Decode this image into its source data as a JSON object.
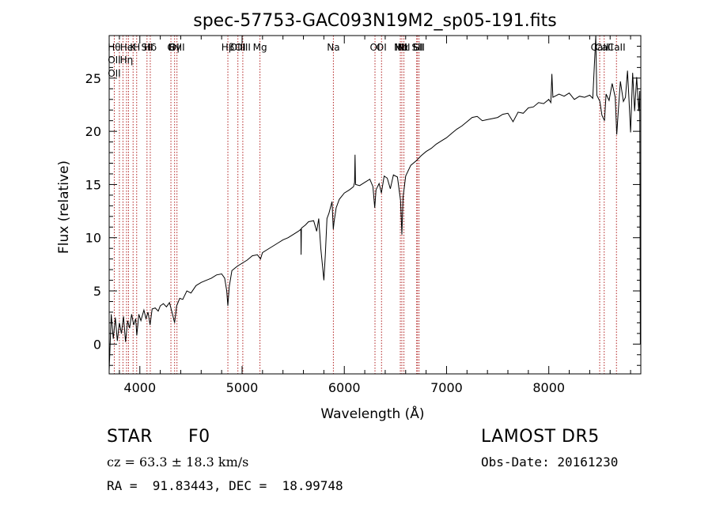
{
  "chart_data": {
    "type": "line",
    "title": "spec-57753-GAC093N19M2_sp05-191.fits",
    "xlabel": "Wavelength (Å)",
    "ylabel": "Flux (relative)",
    "xlim": [
      3700,
      8900
    ],
    "ylim": [
      -2.8,
      29
    ],
    "xticks": [
      4000,
      5000,
      6000,
      7000,
      8000
    ],
    "xtick_labels": [
      "4000",
      "5000",
      "6000",
      "7000",
      "8000"
    ],
    "yticks": [
      0,
      5,
      10,
      15,
      20,
      25
    ],
    "ytick_labels": [
      "0",
      "5",
      "10",
      "15",
      "20",
      "25"
    ],
    "series": [
      {
        "color": "#000000",
        "points": [
          [
            3700,
            -2.5
          ],
          [
            3720,
            2.8
          ],
          [
            3740,
            0.5
          ],
          [
            3760,
            2.5
          ],
          [
            3780,
            0.3
          ],
          [
            3800,
            2.0
          ],
          [
            3820,
            1.0
          ],
          [
            3840,
            2.6
          ],
          [
            3860,
            0.2
          ],
          [
            3880,
            2.2
          ],
          [
            3900,
            1.5
          ],
          [
            3920,
            2.8
          ],
          [
            3940,
            1.8
          ],
          [
            3960,
            2.4
          ],
          [
            3970,
            0.8
          ],
          [
            3990,
            2.8
          ],
          [
            4010,
            2.2
          ],
          [
            4040,
            3.2
          ],
          [
            4060,
            2.4
          ],
          [
            4080,
            3.0
          ],
          [
            4100,
            1.8
          ],
          [
            4120,
            3.3
          ],
          [
            4150,
            3.4
          ],
          [
            4180,
            3.1
          ],
          [
            4200,
            3.6
          ],
          [
            4230,
            3.8
          ],
          [
            4260,
            3.5
          ],
          [
            4290,
            3.9
          ],
          [
            4320,
            2.8
          ],
          [
            4340,
            2.0
          ],
          [
            4360,
            3.6
          ],
          [
            4390,
            4.3
          ],
          [
            4420,
            4.2
          ],
          [
            4460,
            5.0
          ],
          [
            4500,
            4.8
          ],
          [
            4550,
            5.5
          ],
          [
            4600,
            5.8
          ],
          [
            4650,
            6.0
          ],
          [
            4700,
            6.2
          ],
          [
            4750,
            6.5
          ],
          [
            4800,
            6.6
          ],
          [
            4830,
            6.2
          ],
          [
            4850,
            5.0
          ],
          [
            4861,
            3.6
          ],
          [
            4875,
            5.4
          ],
          [
            4900,
            6.9
          ],
          [
            4950,
            7.3
          ],
          [
            5000,
            7.6
          ],
          [
            5050,
            7.9
          ],
          [
            5100,
            8.3
          ],
          [
            5150,
            8.4
          ],
          [
            5180,
            8.0
          ],
          [
            5200,
            8.6
          ],
          [
            5250,
            8.9
          ],
          [
            5300,
            9.2
          ],
          [
            5350,
            9.5
          ],
          [
            5400,
            9.8
          ],
          [
            5450,
            10.0
          ],
          [
            5500,
            10.3
          ],
          [
            5550,
            10.6
          ],
          [
            5575,
            10.8
          ],
          [
            5577,
            8.4
          ],
          [
            5580,
            10.9
          ],
          [
            5620,
            11.2
          ],
          [
            5650,
            11.5
          ],
          [
            5700,
            11.6
          ],
          [
            5730,
            10.6
          ],
          [
            5750,
            11.8
          ],
          [
            5770,
            9.0
          ],
          [
            5790,
            7.0
          ],
          [
            5800,
            6.0
          ],
          [
            5815,
            8.5
          ],
          [
            5830,
            11.8
          ],
          [
            5850,
            12.3
          ],
          [
            5880,
            13.4
          ],
          [
            5892,
            10.8
          ],
          [
            5900,
            11.5
          ],
          [
            5920,
            12.8
          ],
          [
            5950,
            13.6
          ],
          [
            6000,
            14.2
          ],
          [
            6050,
            14.5
          ],
          [
            6090,
            14.8
          ],
          [
            6100,
            15.2
          ],
          [
            6105,
            17.8
          ],
          [
            6110,
            15.0
          ],
          [
            6150,
            14.9
          ],
          [
            6200,
            15.2
          ],
          [
            6250,
            15.5
          ],
          [
            6280,
            14.8
          ],
          [
            6298,
            12.8
          ],
          [
            6310,
            14.5
          ],
          [
            6340,
            15.1
          ],
          [
            6363,
            14.2
          ],
          [
            6390,
            15.8
          ],
          [
            6420,
            15.6
          ],
          [
            6450,
            14.6
          ],
          [
            6480,
            15.9
          ],
          [
            6520,
            15.7
          ],
          [
            6550,
            13.5
          ],
          [
            6563,
            10.3
          ],
          [
            6575,
            13.8
          ],
          [
            6600,
            15.8
          ],
          [
            6650,
            16.8
          ],
          [
            6700,
            17.2
          ],
          [
            6750,
            17.7
          ],
          [
            6800,
            18.1
          ],
          [
            6850,
            18.4
          ],
          [
            6900,
            18.8
          ],
          [
            6950,
            19.1
          ],
          [
            7000,
            19.4
          ],
          [
            7050,
            19.8
          ],
          [
            7100,
            20.2
          ],
          [
            7150,
            20.5
          ],
          [
            7200,
            20.9
          ],
          [
            7250,
            21.3
          ],
          [
            7300,
            21.4
          ],
          [
            7350,
            21.0
          ],
          [
            7400,
            21.1
          ],
          [
            7450,
            21.2
          ],
          [
            7500,
            21.3
          ],
          [
            7550,
            21.6
          ],
          [
            7600,
            21.7
          ],
          [
            7650,
            20.9
          ],
          [
            7700,
            21.8
          ],
          [
            7750,
            21.7
          ],
          [
            7800,
            22.2
          ],
          [
            7850,
            22.3
          ],
          [
            7900,
            22.7
          ],
          [
            7950,
            22.6
          ],
          [
            8000,
            23.0
          ],
          [
            8020,
            22.7
          ],
          [
            8030,
            25.4
          ],
          [
            8040,
            23.2
          ],
          [
            8100,
            23.5
          ],
          [
            8150,
            23.3
          ],
          [
            8200,
            23.6
          ],
          [
            8250,
            23.0
          ],
          [
            8300,
            23.3
          ],
          [
            8350,
            23.2
          ],
          [
            8400,
            23.4
          ],
          [
            8430,
            23.1
          ],
          [
            8460,
            29
          ],
          [
            8470,
            23.4
          ],
          [
            8500,
            22.8
          ],
          [
            8520,
            21.5
          ],
          [
            8545,
            21.0
          ],
          [
            8560,
            23.5
          ],
          [
            8590,
            22.9
          ],
          [
            8620,
            24.5
          ],
          [
            8650,
            23.2
          ],
          [
            8665,
            19.7
          ],
          [
            8680,
            22.0
          ],
          [
            8700,
            24.7
          ],
          [
            8730,
            22.8
          ],
          [
            8750,
            23.2
          ],
          [
            8770,
            25.7
          ],
          [
            8790,
            21.9
          ],
          [
            8800,
            19.9
          ],
          [
            8820,
            25.5
          ],
          [
            8840,
            21.9
          ],
          [
            8860,
            25.1
          ],
          [
            8880,
            21.9
          ],
          [
            8890,
            23.8
          ],
          [
            8895,
            0.0
          ],
          [
            8898,
            2.8
          ],
          [
            8900,
            -0.2
          ]
        ]
      }
    ],
    "lines": [
      {
        "x": 3750,
        "labels": [
          "Hθ",
          "OII",
          "OII"
        ]
      },
      {
        "x": 3800,
        "labels": []
      },
      {
        "x": 3835,
        "labels": []
      },
      {
        "x": 3870,
        "labels": [
          "He",
          "Hη"
        ]
      },
      {
        "x": 3889,
        "labels": []
      },
      {
        "x": 3934,
        "labels": [
          "K"
        ]
      },
      {
        "x": 3969,
        "labels": [
          "H"
        ]
      },
      {
        "x": 4070,
        "labels": [
          "SII"
        ]
      },
      {
        "x": 4102,
        "labels": [
          "Hδ"
        ]
      },
      {
        "x": 4304,
        "labels": [
          "G"
        ]
      },
      {
        "x": 4340,
        "labels": [
          "Hγ"
        ]
      },
      {
        "x": 4363,
        "labels": [
          "OIII"
        ]
      },
      {
        "x": 4861,
        "labels": [
          "Hβ"
        ]
      },
      {
        "x": 4959,
        "labels": [
          "OIII"
        ]
      },
      {
        "x": 5007,
        "labels": [
          "OIII"
        ]
      },
      {
        "x": 5175,
        "labels": [
          "Mg"
        ]
      },
      {
        "x": 5893,
        "labels": [
          "Na"
        ]
      },
      {
        "x": 6300,
        "labels": [
          "OI"
        ]
      },
      {
        "x": 6364,
        "labels": [
          "OI"
        ]
      },
      {
        "x": 6548,
        "labels": [
          "NII"
        ]
      },
      {
        "x": 6563,
        "labels": [
          "Hα"
        ]
      },
      {
        "x": 6583,
        "labels": [
          "NII"
        ]
      },
      {
        "x": 6708,
        "labels": [
          "Li"
        ]
      },
      {
        "x": 6716,
        "labels": [
          "SII"
        ]
      },
      {
        "x": 6731,
        "labels": [
          "SII"
        ]
      },
      {
        "x": 8498,
        "labels": [
          "CaII"
        ]
      },
      {
        "x": 8542,
        "labels": [
          "CaII"
        ]
      },
      {
        "x": 8662,
        "labels": [
          "CaII"
        ]
      }
    ],
    "grid": false
  },
  "info": {
    "class": "STAR",
    "subclass": "F0",
    "survey": "LAMOST DR5",
    "cz": "cz = 63.3 ± 18.3 km/s",
    "obs_date": "Obs-Date: 20161230",
    "radec": "RA =  91.83443, DEC =  18.99748"
  }
}
